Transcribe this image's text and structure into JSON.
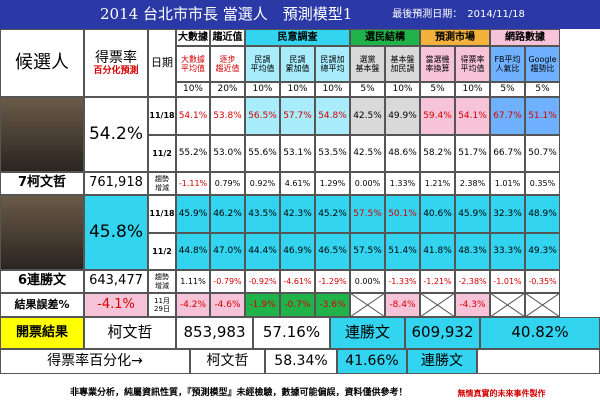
{
  "header": {
    "title": "2014 台北市市長 當選人　預測模型1",
    "date": "最後預測日期：　2014/11/18"
  },
  "colors": {
    "cyan": "#33d4f0",
    "yellow": "#ffff00",
    "green": "#21b34b",
    "lightcyan": "#a9ecfb",
    "orange": "#f4b13c",
    "pink": "#f7c3d9",
    "blue": "#6fb0ff",
    "gray": "#d9d9d9",
    "cream": "#f5f2d0",
    "red": "#d40000"
  },
  "labels": {
    "candidate": "候選人",
    "vote_rate": "得票率",
    "pct_line": "百分化預測",
    "date_col": "日期",
    "trend": "趨勢\n增減",
    "result_error": "結果誤差%",
    "open_result": "開票結果",
    "vote_pct_line": "得票率百分化→",
    "footer": "非專業分析，純屬資訊性質，『預測模型』未經檢驗，數據可能偏誤，資料僅供參考！",
    "footer_right": "無情真實的未來事件製作"
  },
  "groups": [
    {
      "label": "大數據"
    },
    {
      "label": "趨近值"
    },
    {
      "label": "民意調查"
    },
    {
      "label": "選民結構"
    },
    {
      "label": "預測市場"
    },
    {
      "label": "網路數據"
    }
  ],
  "subheads": [
    "大數據\n平均值",
    "逐步\n趨近值",
    "民調\n平均值",
    "民調\n累加值",
    "民調加\n總平均",
    "選黨\n基本盤",
    "基本盤\n加民調",
    "當選機\n率換算",
    "得票率\n平均值",
    "FB平均\n人氣比",
    "Google\n趨勢比"
  ],
  "weights": [
    "10%",
    "20%",
    "10%",
    "10%",
    "10%",
    "5%",
    "10%",
    "5%",
    "10%",
    "5%",
    "5%"
  ],
  "dates": {
    "d1": "11/18",
    "d2": "11/2",
    "e": "11月\n29日"
  },
  "candidates": [
    {
      "name": "7柯文哲",
      "pct": "54.2%",
      "votes": "761,918",
      "row1": [
        "54.1%",
        "53.8%",
        "56.5%",
        "57.7%",
        "54.8%",
        "42.5%",
        "49.9%",
        "59.4%",
        "54.1%",
        "67.7%",
        "51.1%"
      ],
      "row2": [
        "55.2%",
        "53.0%",
        "55.6%",
        "53.1%",
        "53.5%",
        "42.5%",
        "48.6%",
        "58.2%",
        "51.7%",
        "66.7%",
        "50.7%"
      ],
      "trend": [
        "-1.11%",
        "0.79%",
        "0.92%",
        "4.61%",
        "1.29%",
        "0.00%",
        "1.33%",
        "1.21%",
        "2.38%",
        "1.01%",
        "0.35%"
      ]
    },
    {
      "name": "6連勝文",
      "pct": "45.8%",
      "votes": "643,477",
      "row1": [
        "45.9%",
        "46.2%",
        "43.5%",
        "42.3%",
        "45.2%",
        "57.5%",
        "50.1%",
        "40.6%",
        "45.9%",
        "32.3%",
        "48.9%"
      ],
      "row2": [
        "44.8%",
        "47.0%",
        "44.4%",
        "46.9%",
        "46.5%",
        "57.5%",
        "51.4%",
        "41.8%",
        "48.3%",
        "33.3%",
        "49.3%"
      ],
      "trend": [
        "1.11%",
        "-0.79%",
        "-0.92%",
        "-4.61%",
        "-1.29%",
        "0.00%",
        "-1.33%",
        "-1.21%",
        "-2.38%",
        "-1.01%",
        "-0.35%"
      ]
    }
  ],
  "error": {
    "total": "-4.1%",
    "cells": [
      "-4.2%",
      "-4.6%",
      "-1.9%",
      "-0.7%",
      "-3.6%",
      "",
      "-8.4%",
      "",
      "-4.3%",
      "",
      ""
    ]
  },
  "results": {
    "k_name": "柯文哲",
    "k_votes": "853,983",
    "k_pct": "57.16%",
    "l_name": "連勝文",
    "l_votes": "609,932",
    "l_pct": "40.82%",
    "pk_name": "柯文哲",
    "pk_pct": "58.34%",
    "pl_pct": "41.66%",
    "pl_name": "連勝文"
  }
}
